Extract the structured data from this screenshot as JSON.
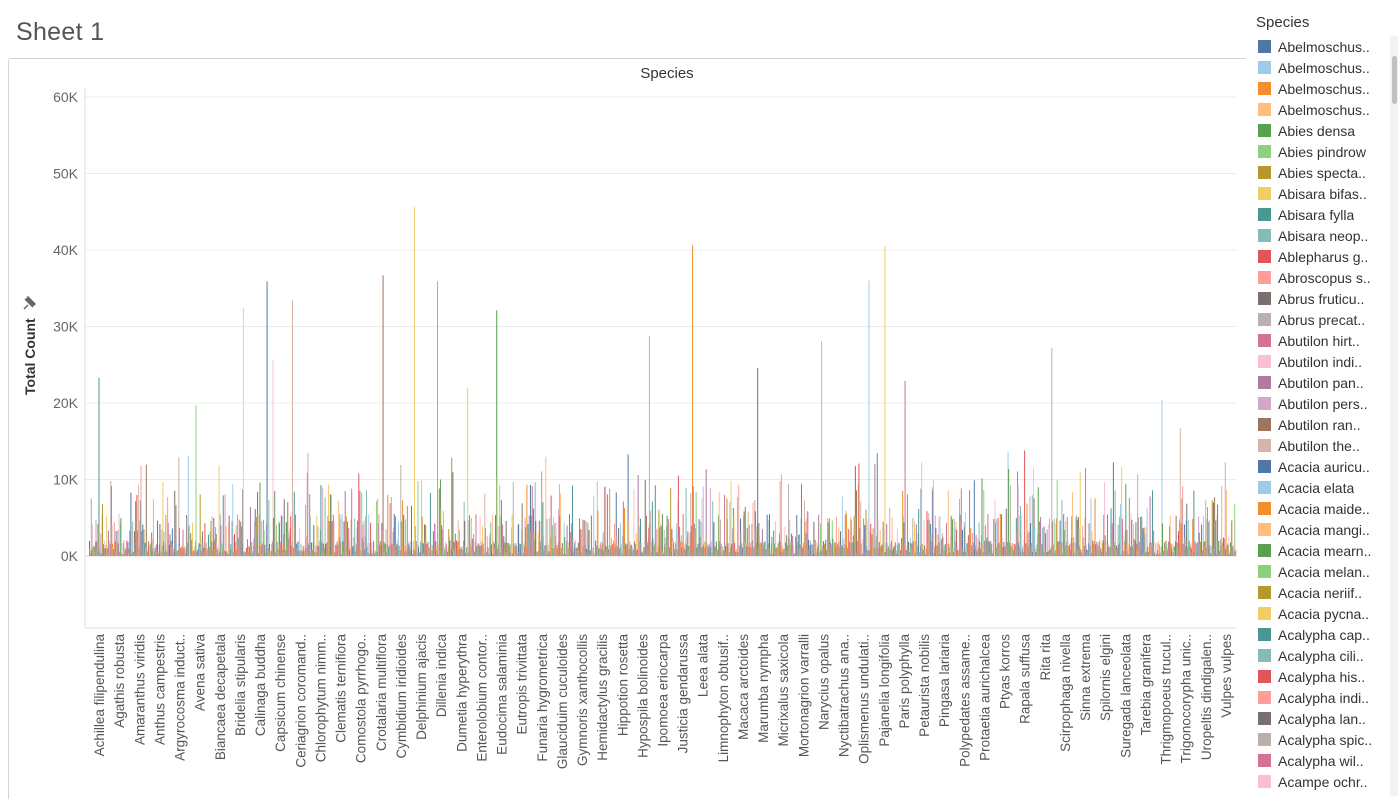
{
  "sheet": {
    "title": "Sheet 1"
  },
  "legend": {
    "title": "Species",
    "items": [
      {
        "label": "Abelmoschus..",
        "color": "#4e79a7"
      },
      {
        "label": "Abelmoschus..",
        "color": "#a0cbe8"
      },
      {
        "label": "Abelmoschus..",
        "color": "#f28e2b"
      },
      {
        "label": "Abelmoschus..",
        "color": "#ffbe7d"
      },
      {
        "label": "Abies densa",
        "color": "#59a14f"
      },
      {
        "label": "Abies pindrow",
        "color": "#8cd17d"
      },
      {
        "label": "Abies specta..",
        "color": "#b6992d"
      },
      {
        "label": "Abisara bifas..",
        "color": "#f1ce63"
      },
      {
        "label": "Abisara fylla",
        "color": "#499894"
      },
      {
        "label": "Abisara neop..",
        "color": "#86bcb6"
      },
      {
        "label": "Ablepharus g..",
        "color": "#e15759"
      },
      {
        "label": "Abroscopus s..",
        "color": "#ff9d9a"
      },
      {
        "label": "Abrus fruticu..",
        "color": "#79706e"
      },
      {
        "label": "Abrus precat..",
        "color": "#bab0ac"
      },
      {
        "label": "Abutilon hirt..",
        "color": "#d37295"
      },
      {
        "label": "Abutilon indi..",
        "color": "#fabfd2"
      },
      {
        "label": "Abutilon pan..",
        "color": "#b07aa1"
      },
      {
        "label": "Abutilon pers..",
        "color": "#d4a6c8"
      },
      {
        "label": "Abutilon ran..",
        "color": "#9d7660"
      },
      {
        "label": "Abutilon the..",
        "color": "#d7b5a6"
      },
      {
        "label": "Acacia auricu..",
        "color": "#4e79a7"
      },
      {
        "label": "Acacia elata",
        "color": "#a0cbe8"
      },
      {
        "label": "Acacia maide..",
        "color": "#f28e2b"
      },
      {
        "label": "Acacia mangi..",
        "color": "#ffbe7d"
      },
      {
        "label": "Acacia mearn..",
        "color": "#59a14f"
      },
      {
        "label": "Acacia melan..",
        "color": "#8cd17d"
      },
      {
        "label": "Acacia neriif..",
        "color": "#b6992d"
      },
      {
        "label": "Acacia pycna..",
        "color": "#f1ce63"
      },
      {
        "label": "Acalypha cap..",
        "color": "#499894"
      },
      {
        "label": "Acalypha cili..",
        "color": "#86bcb6"
      },
      {
        "label": "Acalypha his..",
        "color": "#e15759"
      },
      {
        "label": "Acalypha indi..",
        "color": "#ff9d9a"
      },
      {
        "label": "Acalypha lan..",
        "color": "#79706e"
      },
      {
        "label": "Acalypha spic..",
        "color": "#bab0ac"
      },
      {
        "label": "Acalypha wil..",
        "color": "#d37295"
      },
      {
        "label": "Acampe ochr..",
        "color": "#fabfd2"
      }
    ]
  },
  "chart_data": {
    "type": "bar",
    "title": "Species",
    "xlabel": "",
    "ylabel": "Total Count",
    "ylim": [
      -13000,
      60000
    ],
    "yticks": [
      0,
      10000,
      20000,
      30000,
      40000,
      50000,
      60000
    ],
    "ytick_labels": [
      "0K",
      "10K",
      "20K",
      "30K",
      "40K",
      "50K",
      "60K"
    ],
    "grid": true,
    "legend_position": "right",
    "palette": [
      "#4e79a7",
      "#a0cbe8",
      "#f28e2b",
      "#ffbe7d",
      "#59a14f",
      "#8cd17d",
      "#b6992d",
      "#f1ce63",
      "#499894",
      "#86bcb6",
      "#e15759",
      "#ff9d9a",
      "#79706e",
      "#bab0ac",
      "#d37295",
      "#fabfd2",
      "#b07aa1",
      "#d4a6c8",
      "#9d7660",
      "#d7b5a6"
    ],
    "categories": [
      "Achillea filipendulina",
      "Agathis robusta",
      "Amaranthus viridis",
      "Anthus campestris",
      "Argyrocosma induct..",
      "Avena sativa",
      "Biancaea decapetala",
      "Bridelia stipularis",
      "Calinaga buddha",
      "Capsicum chinense",
      "Ceriagrion coromand..",
      "Chlorophytum nimm..",
      "Clematis ternifiora",
      "Comostola pyrrhogo..",
      "Crotalaria multiflora",
      "Cymbidium iridioides",
      "Delphinium ajacis",
      "Dillenia indica",
      "Dumetia hyperythra",
      "Enterolobium contor..",
      "Eudocima salaminia",
      "Eutropis trivittata",
      "Funaria hygrometrica",
      "Glauciduim cuculoides",
      "Gymnoris xanthocollis",
      "Hemidactylus gracilis",
      "Hippotion rosetta",
      "Hypospila bolinoides",
      "Ipomoea eriocarpa",
      "Justicia gendarussa",
      "Leea alata",
      "Limnophyton obtusif..",
      "Macaca arctoides",
      "Marumba nympha",
      "Micrixalus saxicola",
      "Mortonagrion varralli",
      "Narycius opalus",
      "Nyctibatrachus ana..",
      "Oplismenus undulati..",
      "Pajanelia longifolia",
      "Paris polyphylla",
      "Petaurista nobilis",
      "Pingasa lariaria",
      "Polypedates assame..",
      "Protaetia aurichalcea",
      "Ptyas korros",
      "Rapala suffusa",
      "Rita rita",
      "Scirpophaga nivella",
      "Sinna extrema",
      "Spilornis elgini",
      "Suregada lanceolata",
      "Tarebia granifera",
      "Thrigmopoeus trucul..",
      "Trigonocorypha unic..",
      "Uropeltis dindigalen..",
      "Vulpes vulpes"
    ],
    "series_note": "",
    "peaks": [
      {
        "category": "Achillea filipendulina",
        "value": 23300
      },
      {
        "category": "Avena sativa",
        "value": 19700
      },
      {
        "category": "Bridelia stipularis",
        "value": 32400
      },
      {
        "category": "Calinaga buddha",
        "value": 35900
      },
      {
        "category": "Capsicum chinense",
        "value": 25600
      },
      {
        "category": "Ceriagrion coromand..",
        "value": 33400
      },
      {
        "category": "Crotalaria multiflora",
        "value": 36700
      },
      {
        "category": "Delphinium ajacis",
        "value": 45600
      },
      {
        "category": "Dillenia indica",
        "value": 35900
      },
      {
        "category": "Dumetia hyperythra",
        "value": 22000
      },
      {
        "category": "Eudocima salaminia",
        "value": 32100
      },
      {
        "category": "Hypospila bolinoides",
        "value": 28800
      },
      {
        "category": "Justicia gendarussa",
        "value": 40600
      },
      {
        "category": "Marumba nympha",
        "value": 24600
      },
      {
        "category": "Narycius opalus",
        "value": 28100
      },
      {
        "category": "Oplismenus undulati..",
        "value": 36000
      },
      {
        "category": "Pajanelia longifolia",
        "value": 40500
      },
      {
        "category": "Paris polyphylla",
        "value": 22900
      },
      {
        "category": "Rita rita",
        "value": 27200
      },
      {
        "category": "Thrigmopoeus trucul..",
        "value": 20400
      },
      {
        "category": "Trigonocorypha unic..",
        "value": 16700
      }
    ]
  }
}
